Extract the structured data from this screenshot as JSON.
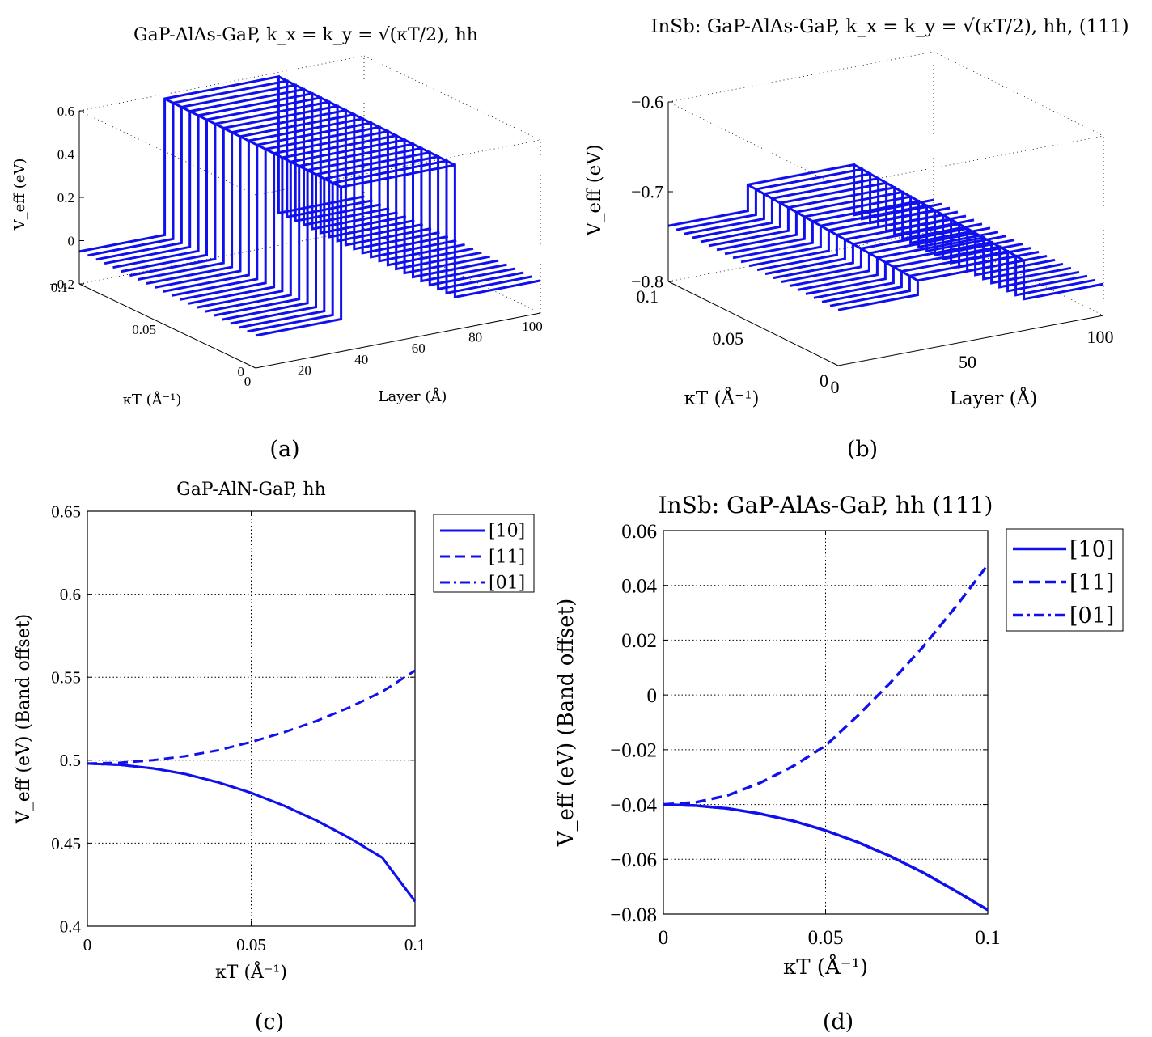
{
  "colors": {
    "line": "#1010ee",
    "axis": "#000000",
    "grid": "#000000"
  },
  "panels": {
    "a": {
      "label": "(a)",
      "title": "GaP-AlAs-GaP, k_x = k_y = √(κT/2), hh"
    },
    "b": {
      "label": "(b)",
      "title": "InSb: GaP-AlAs-GaP, k_x = k_y = √(κT/2), hh, (111)"
    },
    "c": {
      "label": "(c)"
    },
    "d": {
      "label": "(d)"
    }
  },
  "chart_data": [
    {
      "id": "a",
      "type": "surface3d",
      "title": "GaP-AlAs-GaP, k_x = k_y = √(κT/2), hh",
      "xlabel": "Layer (Å)",
      "ylabel": "κT (Å⁻¹)",
      "zlabel": "V_eff (eV)",
      "xticks": [
        "0",
        "20",
        "40",
        "60",
        "80",
        "100"
      ],
      "yticks": [
        "0",
        "0.05",
        "0.1"
      ],
      "zticks": [
        "−0.2",
        "0",
        "0.2",
        "0.4",
        "0.6"
      ],
      "xlim": [
        0,
        100
      ],
      "ylim": [
        0,
        0.1
      ],
      "zlim": [
        -0.2,
        0.6
      ],
      "barrier_layer_range": [
        30,
        70
      ],
      "description": "Square barrier profile V_eff vs layer, one trace per κT"
    },
    {
      "id": "b",
      "type": "surface3d",
      "title": "InSb: GaP-AlAs-GaP, k_x = k_y = √(κT/2), hh, (111)",
      "xlabel": "Layer (Å)",
      "ylabel": "κT (Å⁻¹)",
      "zlabel": "V_eff (eV)",
      "xticks": [
        "0",
        "50",
        "100"
      ],
      "yticks": [
        "0",
        "0.05",
        "0.1"
      ],
      "zticks": [
        "−0.8",
        "−0.7",
        "−0.6"
      ],
      "xlim": [
        0,
        100
      ],
      "ylim": [
        0,
        0.1
      ],
      "zlim": [
        -0.8,
        -0.6
      ],
      "barrier_layer_range": [
        30,
        70
      ],
      "description": "Square barrier profile V_eff vs layer, one trace per κT"
    },
    {
      "id": "c",
      "type": "line",
      "title": "GaP-AlN-GaP, hh",
      "xlabel": "κT (Å⁻¹)",
      "ylabel": "V_eff (eV) (Band offset)",
      "xlim": [
        0,
        0.1
      ],
      "ylim": [
        0.4,
        0.65
      ],
      "xticks": [
        "0",
        "0.05",
        "0.1"
      ],
      "yticks": [
        "0.4",
        "0.45",
        "0.5",
        "0.55",
        "0.6",
        "0.65"
      ],
      "x": [
        0,
        0.01,
        0.02,
        0.03,
        0.04,
        0.05,
        0.06,
        0.07,
        0.08,
        0.09,
        0.1
      ],
      "series": [
        {
          "name": "[10]",
          "style": "solid",
          "values": [
            0.498,
            0.4972,
            0.4951,
            0.4916,
            0.4866,
            0.4803,
            0.4726,
            0.4636,
            0.4531,
            0.4413,
            0.415
          ]
        },
        {
          "name": "[11]",
          "style": "dashed",
          "values": [
            0.498,
            0.4985,
            0.5,
            0.5025,
            0.506,
            0.511,
            0.5168,
            0.5237,
            0.5318,
            0.5413,
            0.554
          ]
        },
        {
          "name": "[01]",
          "style": "dashdot",
          "values": [
            0.498,
            0.4972,
            0.4951,
            0.4916,
            0.4866,
            0.4803,
            0.4726,
            0.4636,
            0.4531,
            0.4413,
            0.415
          ]
        }
      ]
    },
    {
      "id": "d",
      "type": "line",
      "title": "InSb: GaP-AlAs-GaP, hh (111)",
      "xlabel": "κT (Å⁻¹)",
      "ylabel": "V_eff (eV) (Band offset)",
      "xlim": [
        0,
        0.1
      ],
      "ylim": [
        -0.08,
        0.06
      ],
      "xticks": [
        "0",
        "0.05",
        "0.1"
      ],
      "yticks": [
        "−0.08",
        "−0.06",
        "−0.04",
        "−0.02",
        "0",
        "0.02",
        "0.04",
        "0.06"
      ],
      "x": [
        0,
        0.01,
        0.02,
        0.03,
        0.04,
        0.05,
        0.06,
        0.07,
        0.08,
        0.09,
        0.1
      ],
      "series": [
        {
          "name": "[10]",
          "style": "solid",
          "values": [
            -0.04,
            -0.0404,
            -0.0415,
            -0.0434,
            -0.046,
            -0.0495,
            -0.0538,
            -0.0589,
            -0.0648,
            -0.0715,
            -0.0785
          ]
        },
        {
          "name": "[11]",
          "style": "dashed",
          "values": [
            -0.04,
            -0.0392,
            -0.0366,
            -0.032,
            -0.026,
            -0.0185,
            -0.0075,
            0.0045,
            0.0175,
            0.032,
            0.0475
          ]
        },
        {
          "name": "[01]",
          "style": "dashdot",
          "values": [
            -0.04,
            -0.0404,
            -0.0415,
            -0.0434,
            -0.046,
            -0.0495,
            -0.0538,
            -0.0589,
            -0.0648,
            -0.0715,
            -0.0785
          ]
        }
      ]
    }
  ]
}
